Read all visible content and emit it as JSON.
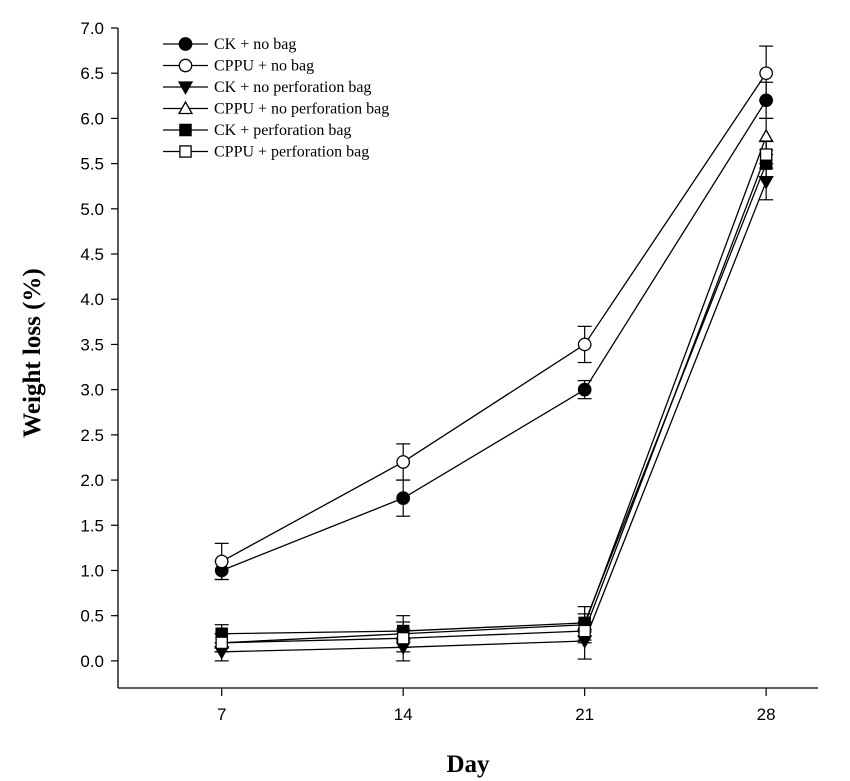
{
  "chart_data": {
    "type": "line",
    "xlabel": "Day",
    "ylabel": "Weight loss (%)",
    "x": [
      7,
      14,
      21,
      28
    ],
    "xlim": [
      3,
      30
    ],
    "ylim": [
      -0.3,
      7.0
    ],
    "yticks": [
      "0.0",
      "0.5",
      "1.0",
      "1.5",
      "2.0",
      "2.5",
      "3.0",
      "3.5",
      "4.0",
      "4.5",
      "5.0",
      "5.5",
      "6.0",
      "6.5",
      "7.0"
    ],
    "xticks": [
      "7",
      "14",
      "21",
      "28"
    ],
    "grid": false,
    "legend_position": "top-left",
    "series": [
      {
        "name": "CK + no bag",
        "marker": "circle",
        "fill": "#000000",
        "values": [
          1.0,
          1.8,
          3.0,
          6.2
        ],
        "errors": [
          0.1,
          0.2,
          0.1,
          0.2
        ]
      },
      {
        "name": "CPPU + no bag",
        "marker": "circle",
        "fill": "#ffffff",
        "values": [
          1.1,
          2.2,
          3.5,
          6.5
        ],
        "errors": [
          0.2,
          0.2,
          0.2,
          0.3
        ]
      },
      {
        "name": "CK + no perforation bag",
        "marker": "triangle-down",
        "fill": "#000000",
        "values": [
          0.1,
          0.15,
          0.22,
          5.3
        ],
        "errors": [
          0.1,
          0.15,
          0.2,
          0.2
        ]
      },
      {
        "name": "CPPU + no perforation bag",
        "marker": "triangle-up",
        "fill": "#ffffff",
        "values": [
          0.2,
          0.3,
          0.4,
          5.8
        ],
        "errors": [
          0.1,
          0.2,
          0.2,
          0.2
        ]
      },
      {
        "name": "CK + perforation bag",
        "marker": "square",
        "fill": "#000000",
        "values": [
          0.3,
          0.33,
          0.42,
          5.5
        ],
        "errors": [
          0.1,
          0.1,
          0.1,
          0.15
        ]
      },
      {
        "name": "CPPU  + perforation bag",
        "marker": "square",
        "fill": "#ffffff",
        "values": [
          0.2,
          0.25,
          0.33,
          5.6
        ],
        "errors": [
          0.1,
          0.1,
          0.1,
          0.15
        ]
      }
    ]
  }
}
